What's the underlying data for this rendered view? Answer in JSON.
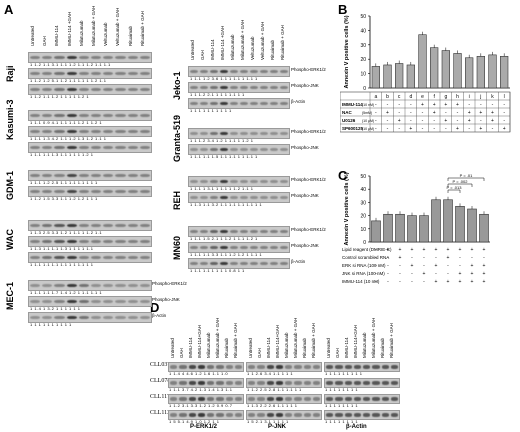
{
  "panels": {
    "A": "A",
    "B": "B",
    "C": "C",
    "D": "D"
  },
  "panelA": {
    "left_headers": [
      "Untreated",
      "GAH",
      "IMMU-114",
      "IMMU-114 +GAH",
      "Milatuzumab",
      "Milatuzumab + GAH",
      "Veltuzumab",
      "Veltuzumab + GAH",
      "Rituximab",
      "Rituximab + GAH"
    ],
    "right_headers": [
      "Untreated",
      "GAH",
      "IMMU-114",
      "IMMU-114 +GAH",
      "Milatuzumab",
      "Milatuzumab + GAH",
      "Veltuzumab",
      "Veltuzumab + GAH",
      "Rituximab",
      "Rituximab + GAH"
    ],
    "left_cells": [
      "Raji",
      "Kasumi-3",
      "GDM-1",
      "WAC",
      "MEC-1"
    ],
    "right_cells": [
      "Jeko-1",
      "Granta-519",
      "REH",
      "MN60"
    ],
    "labels": {
      "perk": "Phospho-ERK1/2",
      "pjnk": "Phospho-JNK",
      "actin": "β-Actin"
    },
    "raji_nums": [
      "1 1.2 1.1 3.1 1.1 1.2 1.1 1.2 1.1 1.1",
      "1 1.2 1.2 5.1 1.2 1.1 1.1 1 1.2 1.1",
      "1 1.2 1.1 1.2 1 1 1 1 1.2 1"
    ],
    "kasumi_nums": [
      "1 1.1 0.9 4.1 1.1 1.1 1.2 1 1.2 1",
      "1 1.1 1.3 4.2 1.1 1.2 1.3 1.2 1.1 1",
      "1 1.1 1.1 1.3 1.1 1 1 1 1.2 1"
    ],
    "gdm_nums": [
      "1 1.1 1.2 2.5 1.1 1.1 1.1 1 1 1",
      "1 1.2 1.5 3.3 1.1 1.2 1.2 1 1 1"
    ],
    "wac_nums": [
      "1 1.3 2.5 3.3 1.2 1 1.1 1 1.2 1.1",
      "1 1.3 1.1 1.1 1.3 1 1 1 1 1.1",
      "1 1.1 1.1 1.1 1.1 1 1 1.1 1 1"
    ],
    "mec_nums": [
      "1 1.1 1.1 1.7 1.4 1.2 1 1.1 1.1 1",
      "1 1.4 1 3.2 1 1 1 1 1 1",
      "1 1 1 1 1 1 1 1 1 1"
    ],
    "jeko_nums": [
      "1 1.1 1.2 3.6 1.1 1 1.1 1 1.1 1",
      "1 1 1.2 2.1 1 1 1 1.1 1 1",
      "1 1 1 1 1 1 1 1 1 1"
    ],
    "granta_nums": [
      "1 1 1.2 3.4 1.2 1 1.1 1 1.2 1",
      "1 1.1 1.1 1.5 1.1 1.1 1 1 1.1 1"
    ],
    "reh_nums": [
      "1 1.1 1 3.1 1 1.1 1 1.2 1.1 1",
      "1 1.3 1.1 3.2 1.1 1.1 1.1 1.1 1 1"
    ],
    "mn60_nums": [
      "1 1.1 1.5 2.1 1 1.2 1 1.1 1.2 1",
      "1 1.1 1.1 3.3 1.1 1.2 1.2 1 1.1 1",
      "1 1.1 1.1 1 1 1 1 0.8 1 1"
    ]
  },
  "chart_data": [
    {
      "type": "bar",
      "panel": "B",
      "ylabel": "Annexin V positive cells (%)",
      "yticks": [
        "0",
        "10",
        "20",
        "30",
        "40",
        "50"
      ],
      "ylim": [
        0,
        50
      ],
      "categories": [
        "a",
        "b",
        "c",
        "d",
        "e",
        "f",
        "g",
        "h",
        "i",
        "j",
        "k",
        "l"
      ],
      "values": [
        15,
        16,
        17,
        16,
        37,
        28,
        26,
        24,
        21,
        22,
        23,
        22
      ],
      "row_labels": [
        "IMMU-114",
        "NAC",
        "U0126",
        "SP600125"
      ],
      "row_units": [
        "(10 nM)",
        "(5mM)",
        "(10 μM)",
        "(10 μM)"
      ],
      "rows": [
        [
          "-",
          "-",
          "-",
          "-",
          "+",
          "+",
          "+",
          "+",
          "-",
          "-",
          "-",
          "-"
        ],
        [
          "-",
          "+",
          "-",
          "-",
          "-",
          "+",
          "-",
          "-",
          "+",
          "+",
          "+",
          "-"
        ],
        [
          "-",
          "-",
          "+",
          "-",
          "-",
          "-",
          "+",
          "-",
          "+",
          "-",
          "+",
          "-"
        ],
        [
          "-",
          "-",
          "-",
          "+",
          "-",
          "-",
          "-",
          "+",
          "-",
          "+",
          "-",
          "+"
        ]
      ]
    },
    {
      "type": "bar",
      "panel": "C",
      "ylabel": "Annexin V positive cells (%)",
      "yticks": [
        "0",
        "10",
        "20",
        "30",
        "40",
        "50"
      ],
      "ylim": [
        0,
        50
      ],
      "values": [
        16,
        21,
        21,
        20,
        20,
        32,
        32,
        27,
        25,
        21
      ],
      "pvalues": [
        "P = .01",
        "P = .002",
        "P = .013"
      ],
      "row_labels": [
        "Lipid reagent (DMRIE-C)",
        "Control scrambled RNA",
        "ERK si RNA (100 nM)",
        "JNK si RNA (100 nM)",
        "IMMU-114 (10 nM)"
      ],
      "rows": [
        [
          "-",
          "+",
          "+",
          "+",
          "+",
          "+",
          "+",
          "+",
          "+",
          "+"
        ],
        [
          "-",
          "-",
          "+",
          "-",
          "-",
          "-",
          "+",
          "-",
          "-",
          "-"
        ],
        [
          "-",
          "-",
          "-",
          "+",
          "-",
          "+",
          "-",
          "-",
          "+",
          "+"
        ],
        [
          "-",
          "-",
          "-",
          "-",
          "+",
          "-",
          "-",
          "+",
          "+",
          "+"
        ],
        [
          "-",
          "-",
          "-",
          "-",
          "-",
          "+",
          "+",
          "+",
          "+",
          "+"
        ]
      ]
    }
  ],
  "panelD": {
    "headers": [
      "Untreated",
      "GAH",
      "IMMU-114",
      "IMMU-114+GAH",
      "Milatuzumab",
      "Milatuzumab + GAH",
      "Rituximab",
      "Rituximab + GAH"
    ],
    "rows": [
      "CLL037",
      "CLL078",
      "CLL117",
      "CLL113"
    ],
    "bottom": [
      "P-ERK1/2",
      "P-JNK",
      "β-Actin"
    ],
    "erk_nums": [
      "1 1.4 4 4.6 1.2 1.6 1.1 1.0",
      "1 1.1 3.7 4.2 1.3 1.4 1.3 1.1",
      "1 1.2 3.1 3.3 1.2 1.2 0.9 0.7",
      "1 5 5.1 4.9 1.0 1.2 1 1"
    ],
    "jnk_nums": [
      "1 1 2.6 3.4 1.1 1 1 1",
      "1 1.2 2.5 2.8 1.1 1.1 1 1",
      "1 1.3 2.2 2.6 1.1 1 1 1",
      "1 5 2.1 3.1 1 1 1 1"
    ],
    "actin_nums": [
      "1 1 1.1 1 1 1 1 1",
      "1 1 1 1 1 1 1 1",
      "1 1 1 1 1 1 1 1",
      "1 1 1 1 1 1 1 1"
    ]
  }
}
